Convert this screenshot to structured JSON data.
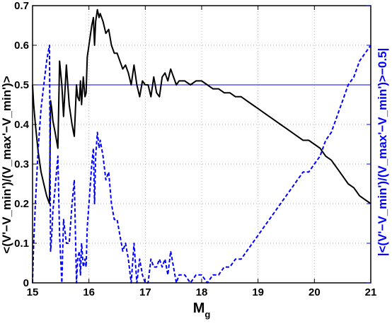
{
  "chart_data": {
    "type": "line",
    "xlabel": "M",
    "xlabel_sub": "g",
    "ylabel_left": "<(V'−V_min')/(V_max'−V_min')>",
    "ylabel_right": "|<(V'−V_min')/(V_max'−V_min')>−0.5|",
    "xlim": [
      15,
      21
    ],
    "ylim": [
      0,
      0.7
    ],
    "ylim_right": [
      0,
      0.35
    ],
    "xticks": [
      "15",
      "16",
      "17",
      "18",
      "19",
      "20",
      "21"
    ],
    "yticks_left": [
      "0",
      "0.1",
      "0.2",
      "0.3",
      "0.4",
      "0.5",
      "0.6",
      "0.7"
    ],
    "yticks_right": [
      "0",
      "0.05",
      "0.1",
      "0.15",
      "0.2",
      "0.25",
      "0.3",
      "0.35"
    ],
    "grid": true,
    "colors": {
      "mean": "#000000",
      "deviation": "#0000ff",
      "reference": "#0000ff",
      "grid": "#b4b4b4"
    },
    "reference_line": {
      "axis": "left",
      "y": 0.5
    },
    "series": [
      {
        "axis": "left",
        "style": "solid",
        "x": [
          15.0,
          15.02,
          15.05,
          15.1,
          15.15,
          15.2,
          15.25,
          15.3,
          15.32,
          15.34,
          15.36,
          15.4,
          15.45,
          15.48,
          15.52,
          15.55,
          15.6,
          15.65,
          15.7,
          15.74,
          15.78,
          15.8,
          15.83,
          15.85,
          15.87,
          15.9,
          15.93,
          15.95,
          15.97,
          16.0,
          16.02,
          16.05,
          16.08,
          16.1,
          16.12,
          16.15,
          16.18,
          16.2,
          16.25,
          16.3,
          16.35,
          16.4,
          16.45,
          16.5,
          16.55,
          16.6,
          16.65,
          16.7,
          16.75,
          16.8,
          16.85,
          16.9,
          16.95,
          17.0,
          17.05,
          17.1,
          17.15,
          17.2,
          17.25,
          17.3,
          17.35,
          17.4,
          17.45,
          17.5,
          17.55,
          17.6,
          17.7,
          17.8,
          17.9,
          18.0,
          18.1,
          18.2,
          18.3,
          18.4,
          18.5,
          18.6,
          18.7,
          18.8,
          18.9,
          19.0,
          19.1,
          19.2,
          19.3,
          19.4,
          19.5,
          19.6,
          19.7,
          19.8,
          19.9,
          20.0,
          20.1,
          20.2,
          20.3,
          20.4,
          20.5,
          20.6,
          20.7,
          20.8,
          20.9,
          21.0
        ],
        "values": [
          0.5,
          0.45,
          0.4,
          0.33,
          0.28,
          0.25,
          0.22,
          0.2,
          0.46,
          0.44,
          0.41,
          0.38,
          0.34,
          0.56,
          0.5,
          0.42,
          0.55,
          0.45,
          0.4,
          0.37,
          0.5,
          0.47,
          0.46,
          0.51,
          0.45,
          0.52,
          0.47,
          0.48,
          0.57,
          0.6,
          0.62,
          0.65,
          0.67,
          0.6,
          0.66,
          0.69,
          0.67,
          0.68,
          0.66,
          0.63,
          0.64,
          0.6,
          0.58,
          0.58,
          0.56,
          0.54,
          0.55,
          0.53,
          0.5,
          0.55,
          0.5,
          0.47,
          0.51,
          0.5,
          0.5,
          0.47,
          0.52,
          0.48,
          0.47,
          0.52,
          0.53,
          0.51,
          0.54,
          0.52,
          0.5,
          0.51,
          0.51,
          0.5,
          0.51,
          0.51,
          0.5,
          0.49,
          0.49,
          0.48,
          0.48,
          0.47,
          0.47,
          0.46,
          0.45,
          0.44,
          0.43,
          0.42,
          0.41,
          0.4,
          0.39,
          0.38,
          0.37,
          0.36,
          0.36,
          0.35,
          0.34,
          0.32,
          0.31,
          0.29,
          0.27,
          0.25,
          0.24,
          0.22,
          0.21,
          0.2
        ]
      },
      {
        "axis": "right",
        "style": "dashed",
        "x": [
          15.0,
          15.02,
          15.05,
          15.1,
          15.15,
          15.2,
          15.25,
          15.3,
          15.32,
          15.34,
          15.36,
          15.4,
          15.45,
          15.48,
          15.52,
          15.55,
          15.6,
          15.65,
          15.7,
          15.74,
          15.78,
          15.8,
          15.83,
          15.85,
          15.87,
          15.9,
          15.93,
          15.95,
          15.97,
          16.0,
          16.02,
          16.05,
          16.08,
          16.1,
          16.12,
          16.15,
          16.18,
          16.2,
          16.25,
          16.3,
          16.35,
          16.4,
          16.45,
          16.5,
          16.55,
          16.6,
          16.65,
          16.7,
          16.75,
          16.8,
          16.85,
          16.9,
          16.95,
          17.0,
          17.05,
          17.1,
          17.15,
          17.2,
          17.25,
          17.3,
          17.35,
          17.4,
          17.45,
          17.5,
          17.55,
          17.6,
          17.7,
          17.8,
          17.9,
          18.0,
          18.1,
          18.2,
          18.3,
          18.4,
          18.5,
          18.6,
          18.7,
          18.8,
          18.9,
          19.0,
          19.1,
          19.2,
          19.3,
          19.4,
          19.5,
          19.6,
          19.7,
          19.8,
          19.9,
          20.0,
          20.1,
          20.2,
          20.3,
          20.4,
          20.5,
          20.6,
          20.7,
          20.8,
          20.9,
          21.0
        ],
        "values": [
          0.0,
          0.05,
          0.1,
          0.17,
          0.22,
          0.25,
          0.28,
          0.3,
          0.04,
          0.06,
          0.09,
          0.12,
          0.16,
          0.06,
          0.0,
          0.08,
          0.05,
          0.05,
          0.1,
          0.13,
          0.0,
          0.03,
          0.04,
          0.01,
          0.05,
          0.02,
          0.03,
          0.02,
          0.07,
          0.1,
          0.12,
          0.15,
          0.17,
          0.1,
          0.16,
          0.19,
          0.17,
          0.18,
          0.16,
          0.13,
          0.14,
          0.1,
          0.08,
          0.08,
          0.06,
          0.04,
          0.05,
          0.03,
          0.0,
          0.05,
          0.0,
          0.03,
          0.01,
          0.0,
          0.0,
          0.03,
          0.02,
          0.02,
          0.03,
          0.02,
          0.03,
          0.01,
          0.04,
          0.02,
          0.0,
          0.01,
          0.01,
          0.0,
          0.01,
          0.01,
          0.0,
          0.01,
          0.01,
          0.02,
          0.02,
          0.03,
          0.03,
          0.04,
          0.05,
          0.06,
          0.07,
          0.08,
          0.09,
          0.1,
          0.11,
          0.12,
          0.13,
          0.14,
          0.14,
          0.15,
          0.16,
          0.18,
          0.19,
          0.21,
          0.23,
          0.25,
          0.26,
          0.28,
          0.29,
          0.3
        ]
      }
    ]
  }
}
